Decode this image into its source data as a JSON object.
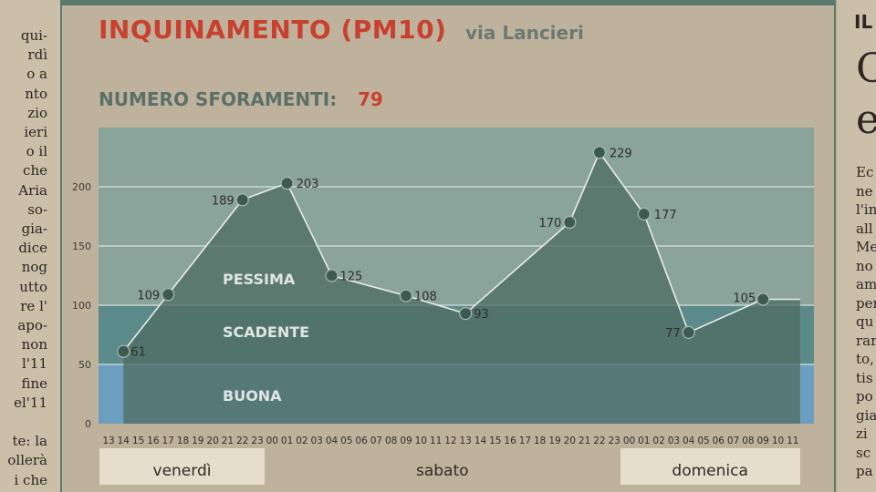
{
  "header": {
    "title": "INQUINAMENTO (PM10)",
    "subtitle": "via Lancieri",
    "count_label": "NUMERO SFORAMENTI:",
    "count_value": "79"
  },
  "colors": {
    "accent_red": "#c8412e",
    "zone_pessima": "#8aa39b",
    "zone_scadente": "#5b8a8a",
    "zone_buona": "#6c9fbf",
    "area_fill": "#4f6d64",
    "marker": "#3d5a50"
  },
  "chart_data": {
    "type": "area",
    "title": "INQUINAMENTO (PM10)",
    "subtitle": "via Lancieri",
    "ylim": [
      0,
      250
    ],
    "yticks": [
      0,
      50,
      100,
      150,
      200
    ],
    "hours": [
      "13",
      "14",
      "15",
      "16",
      "17",
      "18",
      "19",
      "20",
      "21",
      "22",
      "23",
      "00",
      "01",
      "02",
      "03",
      "04",
      "05",
      "06",
      "07",
      "08",
      "09",
      "10",
      "11",
      "12",
      "13",
      "14",
      "15",
      "16",
      "17",
      "18",
      "19",
      "20",
      "21",
      "22",
      "23",
      "00",
      "01",
      "02",
      "03",
      "04",
      "05",
      "06",
      "07",
      "08",
      "09",
      "10",
      "11"
    ],
    "points": [
      {
        "i": 1,
        "value": 61,
        "label": "61"
      },
      {
        "i": 4,
        "value": 109,
        "label": "109"
      },
      {
        "i": 9,
        "value": 189,
        "label": "189"
      },
      {
        "i": 12,
        "value": 203,
        "label": "203"
      },
      {
        "i": 15,
        "value": 125,
        "label": "125"
      },
      {
        "i": 20,
        "value": 108,
        "label": "108"
      },
      {
        "i": 24,
        "value": 93,
        "label": "93"
      },
      {
        "i": 31,
        "value": 170,
        "label": "170"
      },
      {
        "i": 33,
        "value": 229,
        "label": "229"
      },
      {
        "i": 36,
        "value": 177,
        "label": "177"
      },
      {
        "i": 39,
        "value": 77,
        "label": "77"
      },
      {
        "i": 44,
        "value": 105,
        "label": "105"
      }
    ],
    "zones": [
      {
        "name": "PESSIMA",
        "from": 100,
        "to": 250
      },
      {
        "name": "SCADENTE",
        "from": 50,
        "to": 100
      },
      {
        "name": "BUONA",
        "from": 0,
        "to": 50
      }
    ],
    "days": [
      {
        "label": "venerdì",
        "from": 0,
        "to": 10
      },
      {
        "label": "sabato",
        "from": 11,
        "to": 34
      },
      {
        "label": "domenica",
        "from": 35,
        "to": 46
      }
    ],
    "grid": true
  },
  "left_column": [
    "qui-",
    "rdì",
    "o a",
    "nto",
    "zio",
    "ieri",
    "o il",
    "che",
    "Aria",
    "so-",
    "gia-",
    "dice",
    "nog",
    "utto",
    "re l'",
    "apo-",
    "non",
    "l'11",
    "fine",
    "el'11",
    "",
    "te: la",
    "ollerà",
    "i che"
  ],
  "right_column": {
    "heading": "IL",
    "big_letters": [
      "C",
      "e"
    ],
    "lines": [
      "Ec",
      "ne",
      "l'in",
      "all",
      "Me",
      "no",
      "am",
      "per",
      "qu",
      "rar",
      "to,",
      "tis",
      "po",
      "gia",
      "zi",
      "sc",
      "pa"
    ]
  }
}
